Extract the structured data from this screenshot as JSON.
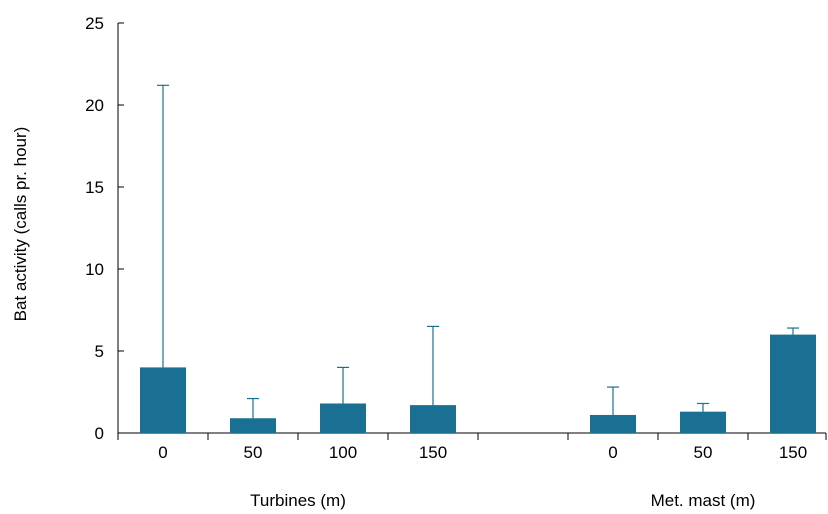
{
  "chart_data": {
    "type": "bar",
    "title": "",
    "ylabel": "Bat activity (calls pr. hour)",
    "ylim": [
      0,
      25
    ],
    "yticks": [
      0,
      5,
      10,
      15,
      20,
      25
    ],
    "grid": false,
    "legend": "none",
    "bar_color": "#1a7093",
    "groups": [
      {
        "label": "Turbines (m)",
        "categories": [
          "0",
          "50",
          "100",
          "150"
        ],
        "values": [
          4.0,
          0.9,
          1.8,
          1.7
        ],
        "error_upper": [
          21.2,
          2.1,
          4.0,
          6.5
        ]
      },
      {
        "label": "Met. mast (m)",
        "categories": [
          "0",
          "50",
          "150"
        ],
        "values": [
          1.1,
          1.3,
          6.0
        ],
        "error_upper": [
          2.8,
          1.8,
          6.4
        ]
      }
    ]
  }
}
